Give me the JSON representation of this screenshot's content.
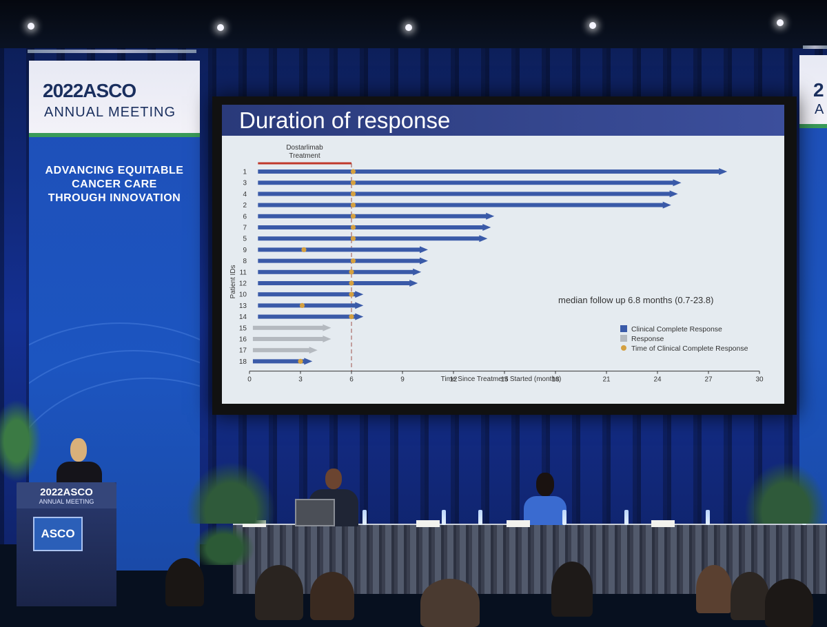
{
  "banner_left": {
    "year_brand": "2022ASCO",
    "subtitle": "ANNUAL MEETING",
    "tagline": "ADVANCING EQUITABLE\nCANCER CARE\nTHROUGH INNOVATION"
  },
  "banner_right": {
    "year_brand": "2",
    "subtitle": "A"
  },
  "podium": {
    "brand": "2022ASCO",
    "subtitle": "ANNUAL MEETING",
    "logo": "ASCO"
  },
  "slide": {
    "title": "Duration of response",
    "treatment_label_line1": "Dostarlimab",
    "treatment_label_line2": "Treatment",
    "annotation": "median follow up 6.8 months (0.7-23.8)"
  },
  "chart_data": {
    "type": "bar",
    "orientation": "horizontal swimmer plot",
    "xlabel": "Time Since Treatment Started (months)",
    "ylabel": "Patient IDs",
    "xlim": [
      0,
      30
    ],
    "xticks": [
      0,
      3,
      6,
      9,
      12,
      15,
      18,
      21,
      24,
      27,
      30
    ],
    "treatment_period": [
      0.5,
      6
    ],
    "reference_line_x": 6,
    "legend": [
      {
        "label": "Clinical Complete Response",
        "color": "#3a5aa8",
        "marker": "square"
      },
      {
        "label": "Response",
        "color": "#b4b9bf",
        "marker": "square"
      },
      {
        "label": "Time of Clinical Complete Response",
        "color": "#d4a040",
        "marker": "dot"
      }
    ],
    "patients": [
      {
        "id": "1",
        "start": 0.5,
        "end": 28.1,
        "status": "Clinical Complete Response",
        "ccr_time": 6.1,
        "ongoing": true
      },
      {
        "id": "3",
        "start": 0.5,
        "end": 25.4,
        "status": "Clinical Complete Response",
        "ccr_time": 6.1,
        "ongoing": true
      },
      {
        "id": "4",
        "start": 0.5,
        "end": 25.2,
        "status": "Clinical Complete Response",
        "ccr_time": 6.1,
        "ongoing": true
      },
      {
        "id": "2",
        "start": 0.5,
        "end": 24.8,
        "status": "Clinical Complete Response",
        "ccr_time": 6.1,
        "ongoing": true
      },
      {
        "id": "6",
        "start": 0.5,
        "end": 14.4,
        "status": "Clinical Complete Response",
        "ccr_time": 6.1,
        "ongoing": true
      },
      {
        "id": "7",
        "start": 0.5,
        "end": 14.2,
        "status": "Clinical Complete Response",
        "ccr_time": 6.1,
        "ongoing": true
      },
      {
        "id": "5",
        "start": 0.5,
        "end": 14.0,
        "status": "Clinical Complete Response",
        "ccr_time": 6.1,
        "ongoing": true
      },
      {
        "id": "9",
        "start": 0.5,
        "end": 10.5,
        "status": "Clinical Complete Response",
        "ccr_time": 3.2,
        "ongoing": true
      },
      {
        "id": "8",
        "start": 0.5,
        "end": 10.5,
        "status": "Clinical Complete Response",
        "ccr_time": 6.1,
        "ongoing": true
      },
      {
        "id": "11",
        "start": 0.5,
        "end": 10.1,
        "status": "Clinical Complete Response",
        "ccr_time": 6.0,
        "ongoing": true
      },
      {
        "id": "12",
        "start": 0.5,
        "end": 9.9,
        "status": "Clinical Complete Response",
        "ccr_time": 6.0,
        "ongoing": true
      },
      {
        "id": "10",
        "start": 0.5,
        "end": 6.7,
        "status": "Clinical Complete Response",
        "ccr_time": 6.0,
        "ongoing": true
      },
      {
        "id": "13",
        "start": 0.5,
        "end": 6.7,
        "status": "Clinical Complete Response",
        "ccr_time": 3.1,
        "ongoing": true
      },
      {
        "id": "14",
        "start": 0.5,
        "end": 6.7,
        "status": "Clinical Complete Response",
        "ccr_time": 6.0,
        "ongoing": true
      },
      {
        "id": "15",
        "start": 0.2,
        "end": 4.8,
        "status": "Response",
        "ccr_time": null,
        "ongoing": true
      },
      {
        "id": "16",
        "start": 0.2,
        "end": 4.8,
        "status": "Response",
        "ccr_time": null,
        "ongoing": true
      },
      {
        "id": "17",
        "start": 0.2,
        "end": 4.0,
        "status": "Response",
        "ccr_time": null,
        "ongoing": true
      },
      {
        "id": "18",
        "start": 0.2,
        "end": 3.7,
        "status": "Clinical Complete Response",
        "ccr_time": 3.0,
        "ongoing": true
      }
    ]
  },
  "colors": {
    "curtain": "#143093",
    "banner": "#1c55c0",
    "accent_green": "#3a9b59",
    "slide_title_bar": "#2a3a7a",
    "treatment_bar": "#c0392b"
  }
}
